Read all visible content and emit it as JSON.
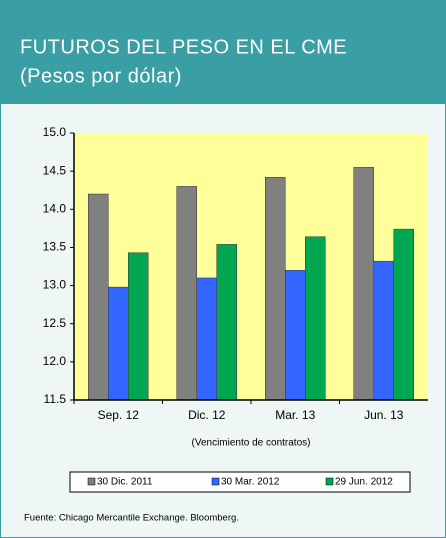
{
  "chart_data": {
    "type": "bar",
    "title": "FUTUROS DEL PESO EN EL CME",
    "subtitle": "(Pesos por dólar)",
    "x_label": "(Vencimiento de contratos)",
    "source": "Fuente: Chicago Mercantile Exchange. Bloomberg.",
    "categories": [
      "Sep. 12",
      "Dic. 12",
      "Mar. 13",
      "Jun. 13"
    ],
    "series": [
      {
        "name": "30 Dic. 2011",
        "color": "#808080",
        "values": [
          14.2,
          14.3,
          14.42,
          14.55
        ]
      },
      {
        "name": "30 Mar. 2012",
        "color": "#3366ff",
        "values": [
          12.98,
          13.1,
          13.2,
          13.32
        ]
      },
      {
        "name": "29 Jun. 2012",
        "color": "#00a650",
        "values": [
          13.43,
          13.54,
          13.64,
          13.74
        ]
      }
    ],
    "ylim": [
      11.5,
      15
    ],
    "yticks": [
      11.5,
      {
        "value": 12,
        "label": "12.0"
      },
      12.5,
      {
        "value": 13,
        "label": "13.0"
      },
      13.5,
      {
        "value": 14,
        "label": "14.0"
      },
      14.5,
      {
        "value": 15,
        "label": "15.0"
      }
    ],
    "legend": "bottom"
  }
}
